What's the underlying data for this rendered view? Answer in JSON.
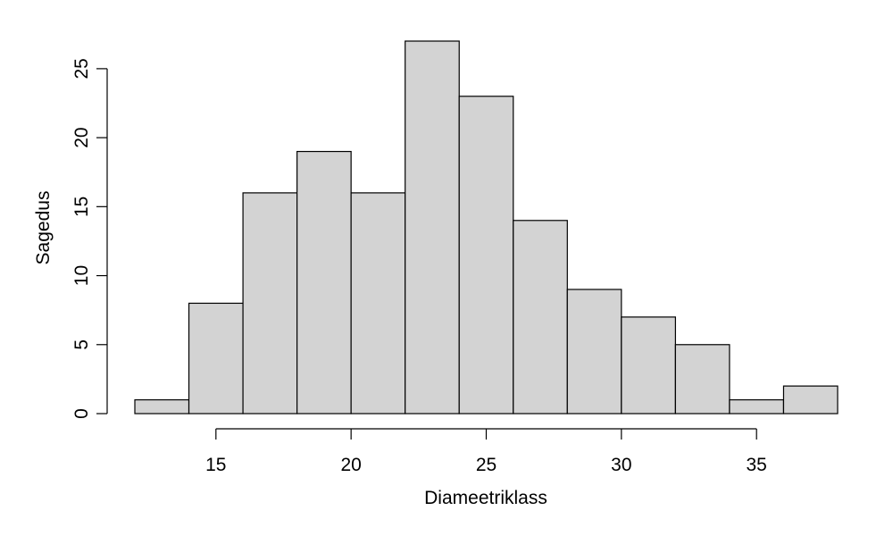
{
  "chart_data": {
    "type": "bar",
    "subtype": "histogram",
    "bin_edges": [
      12,
      14,
      16,
      18,
      20,
      22,
      24,
      26,
      28,
      30,
      32,
      34,
      36,
      38
    ],
    "values": [
      1,
      8,
      16,
      19,
      16,
      27,
      23,
      14,
      9,
      7,
      5,
      1,
      2
    ],
    "xlabel": "Diameetriklass",
    "ylabel": "Sagedus",
    "xlim": [
      12,
      38
    ],
    "ylim": [
      0,
      27
    ],
    "xticks": [
      15,
      20,
      25,
      30,
      35
    ],
    "yticks": [
      0,
      5,
      10,
      15,
      20,
      25
    ],
    "grid": false,
    "bar_color": "#d3d3d3",
    "edge_color": "#000000"
  }
}
